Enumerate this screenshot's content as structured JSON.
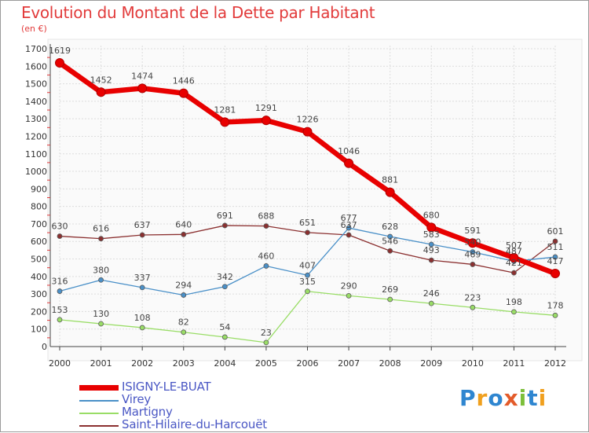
{
  "header": {
    "title": "Evolution du Montant de la Dette par Habitant",
    "subtitle": "(en €)"
  },
  "logo": {
    "text": "Proxiti",
    "colors": [
      "#2f86d0",
      "#f0a01e",
      "#2f86d0",
      "#e35b2a",
      "#7cbf3a",
      "#2f86d0",
      "#f0a01e"
    ]
  },
  "chart_data": {
    "type": "line",
    "title": "Evolution du Montant de la Dette par Habitant",
    "subtitle": "(en €)",
    "xlabel": "",
    "ylabel": "",
    "x": [
      "2000",
      "2001",
      "2002",
      "2003",
      "2004",
      "2005",
      "2006",
      "2007",
      "2008",
      "2009",
      "2010",
      "2011",
      "2012"
    ],
    "ylim": [
      0,
      1700
    ],
    "yticks": [
      0,
      100,
      200,
      300,
      400,
      500,
      600,
      700,
      800,
      900,
      1000,
      1100,
      1200,
      1300,
      1400,
      1500,
      1600,
      1700
    ],
    "grid": true,
    "legend_position": "bottom",
    "series": [
      {
        "name": "ISIGNY-LE-BUAT",
        "color": "#e80000",
        "width": 6.5,
        "marker": 5.5,
        "values": [
          1619,
          1452,
          1474,
          1446,
          1281,
          1291,
          1226,
          1046,
          881,
          680,
          591,
          507,
          417
        ]
      },
      {
        "name": "Virey",
        "color": "#4a90c8",
        "width": 1.3,
        "marker": 3,
        "values": [
          316,
          380,
          337,
          294,
          342,
          460,
          407,
          677,
          628,
          583,
          540,
          487,
          511
        ]
      },
      {
        "name": "Martigny",
        "color": "#99dd66",
        "width": 1.3,
        "marker": 3,
        "values": [
          153,
          130,
          108,
          82,
          54,
          23,
          315,
          290,
          269,
          246,
          223,
          198,
          178
        ]
      },
      {
        "name": "Saint-Hilaire-du-Harcouët",
        "color": "#8b3030",
        "width": 1.3,
        "marker": 3,
        "values": [
          630,
          616,
          637,
          640,
          691,
          688,
          651,
          637,
          546,
          493,
          469,
          421,
          601
        ]
      }
    ],
    "data_labels": [
      {
        "series": 0,
        "labels": [
          "1619",
          "1452",
          "1474",
          "1446",
          "1281",
          "1291",
          "1226",
          "1046",
          "881",
          "680",
          "591",
          "507",
          "417"
        ]
      },
      {
        "series": 1,
        "labels": [
          "316",
          "380",
          "337",
          "294",
          "342",
          "460",
          "407",
          "677",
          "628",
          "583",
          "540",
          "487",
          "511"
        ]
      },
      {
        "series": 2,
        "labels": [
          "153",
          "130",
          "108",
          "82",
          "54",
          "23",
          "315",
          "290",
          "269",
          "246",
          "223",
          "198",
          "178"
        ]
      },
      {
        "series": 3,
        "labels": [
          "630",
          "616",
          "637",
          "640",
          "691",
          "688",
          "651",
          "637",
          "546",
          "493",
          "469",
          "421",
          "601"
        ]
      }
    ]
  }
}
